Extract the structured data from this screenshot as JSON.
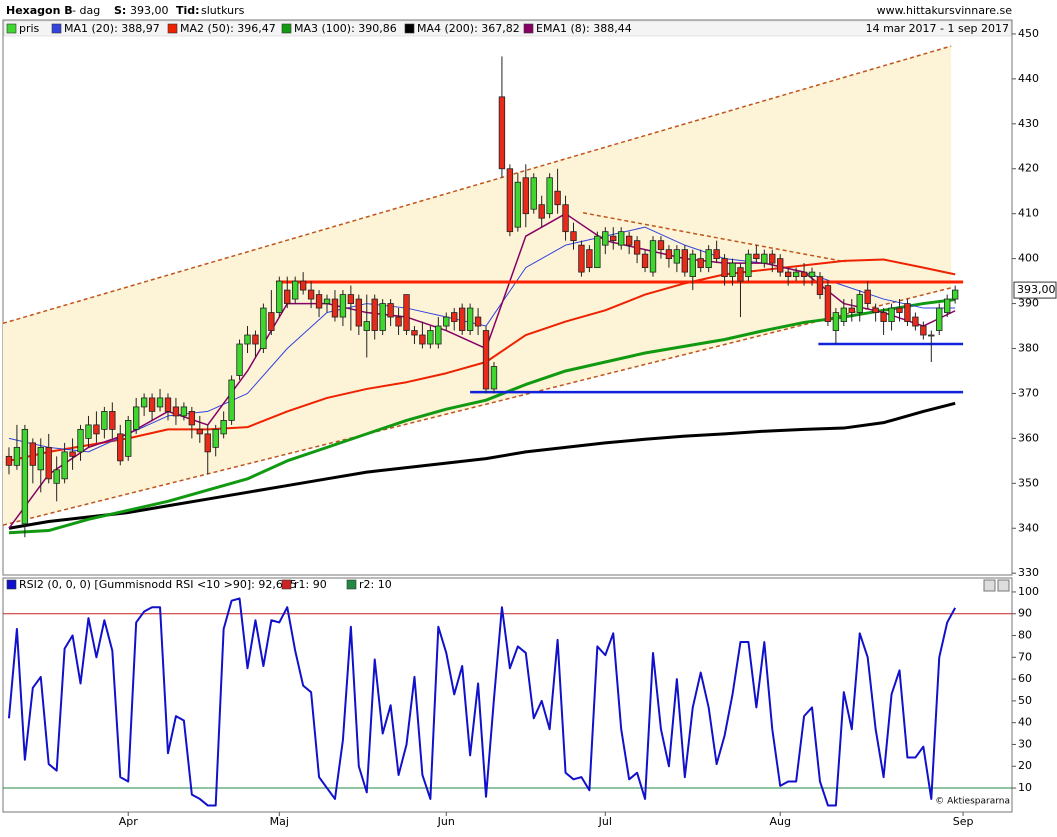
{
  "chart_data": [
    {
      "type": "candlestick",
      "title": "Hexagon B",
      "subtitle": "- dag",
      "s_label": "S:",
      "s_value": "393,00",
      "tid_label": "Tid:",
      "tid_value": "slutkurs",
      "source": "www.hittakursvinnare.se",
      "date_range": "14 mar 2017 - 1 sep 2017",
      "last_label": "393,00",
      "candle_name": "pris",
      "up_color": "#3fd630",
      "down_color": "#e82a1a",
      "xlim": [
        -0.75,
        126.15
      ],
      "ylim": [
        329.6,
        453.1
      ],
      "yticks": [
        330,
        340,
        350,
        360,
        370,
        380,
        390,
        400,
        410,
        420,
        430,
        440,
        450
      ],
      "open": [
        356,
        354,
        341,
        359,
        353,
        358,
        350,
        351,
        357,
        357,
        360,
        363,
        362,
        366,
        361,
        356,
        362,
        367,
        369,
        367,
        369,
        367,
        365,
        366,
        362,
        361,
        358,
        361,
        364,
        374,
        381,
        383,
        380,
        388,
        388,
        393,
        391,
        395,
        393,
        392,
        390,
        391,
        387,
        392,
        391,
        384,
        391,
        384,
        390,
        387,
        392,
        384,
        383,
        381,
        381,
        385,
        388,
        389,
        384,
        387,
        384,
        371,
        436,
        420,
        407,
        418,
        411,
        412,
        410,
        415,
        412,
        406,
        403,
        402,
        398,
        403,
        405,
        403,
        405,
        404,
        401,
        397,
        404,
        402,
        399,
        402,
        396,
        400,
        398,
        402,
        400,
        396,
        398,
        396,
        401,
        399,
        401,
        400,
        397,
        396,
        397,
        396,
        396,
        394,
        384,
        386,
        389,
        388,
        393,
        389,
        388,
        386,
        389,
        390,
        387,
        385,
        383,
        384,
        388,
        391
      ],
      "high": [
        358,
        363,
        363,
        360,
        360,
        361,
        356,
        359,
        360,
        363,
        365,
        366,
        367,
        368,
        363,
        365,
        369,
        370,
        370,
        371,
        370,
        369,
        368,
        367,
        365,
        363,
        363,
        366,
        374,
        382,
        385,
        384,
        390,
        393,
        396,
        396,
        396,
        397,
        395,
        393,
        392,
        393,
        393,
        394,
        392,
        392,
        392,
        391,
        391,
        389,
        392,
        385,
        386,
        385,
        387,
        388,
        389,
        390,
        390,
        389,
        385,
        377,
        445,
        421,
        419,
        421,
        419,
        414,
        419,
        420,
        414,
        408,
        404,
        403,
        406,
        407,
        407,
        407,
        406,
        405,
        402,
        405,
        405,
        403,
        403,
        403,
        402,
        402,
        403,
        404,
        401,
        400,
        399,
        402,
        403,
        402,
        402,
        401,
        398,
        398,
        399,
        398,
        397,
        395,
        389,
        391,
        391,
        393,
        395,
        390,
        389,
        390,
        391,
        391,
        388,
        386,
        384,
        390,
        392,
        394
      ],
      "low": [
        352,
        353,
        338,
        350,
        348,
        350,
        346,
        350,
        353,
        355,
        358,
        359,
        360,
        360,
        354,
        355,
        361,
        365,
        364,
        366,
        364,
        363,
        364,
        360,
        359,
        352,
        356,
        360,
        363,
        373,
        379,
        378,
        379,
        383,
        387,
        389,
        390,
        392,
        389,
        387,
        388,
        386,
        385,
        384,
        383,
        378,
        382,
        383,
        385,
        383,
        383,
        381,
        380,
        380,
        380,
        384,
        384,
        383,
        383,
        383,
        370,
        370,
        418,
        405,
        406,
        407,
        410,
        407,
        409,
        410,
        404,
        402,
        396,
        397,
        398,
        401,
        402,
        402,
        401,
        399,
        397,
        396,
        400,
        398,
        397,
        396,
        393,
        397,
        397,
        399,
        394,
        394,
        387,
        395,
        399,
        398,
        397,
        396,
        394,
        395,
        394,
        394,
        391,
        385,
        381,
        385,
        386,
        386,
        389,
        386,
        383,
        384,
        386,
        385,
        384,
        382,
        377,
        383,
        387,
        390
      ],
      "close": [
        354,
        358,
        362,
        354,
        358,
        351,
        353,
        357,
        356,
        362,
        363,
        361,
        366,
        362,
        355,
        364,
        367,
        369,
        366,
        369,
        366,
        365,
        367,
        363,
        361,
        357,
        362,
        364,
        373,
        381,
        383,
        381,
        389,
        384,
        395,
        390,
        395,
        393,
        391,
        389,
        391,
        387,
        392,
        390,
        385,
        386,
        384,
        390,
        387,
        385,
        384,
        383,
        381,
        384,
        385,
        387,
        386,
        384,
        389,
        385,
        371,
        376,
        420,
        406,
        417,
        410,
        418,
        409,
        418,
        412,
        406,
        404,
        397,
        398,
        405,
        406,
        404,
        406,
        403,
        401,
        398,
        404,
        402,
        400,
        402,
        397,
        401,
        398,
        402,
        400,
        396,
        399,
        395,
        401,
        400,
        401,
        399,
        397,
        396,
        397,
        396,
        397,
        392,
        386,
        388,
        389,
        388,
        392,
        390,
        388,
        386,
        389,
        388,
        386,
        385,
        383,
        383,
        389,
        391,
        393
      ],
      "series": [
        {
          "name": "MA1 (20): 388,97",
          "color": "#3344dd",
          "width": 1,
          "x": [
            0,
            5,
            10,
            15,
            20,
            25,
            30,
            35,
            40,
            45,
            50,
            55,
            60,
            65,
            70,
            75,
            80,
            85,
            90,
            95,
            100,
            105,
            110,
            115,
            119
          ],
          "values": [
            360,
            358,
            357,
            361,
            365,
            366,
            370,
            380,
            388,
            390,
            389,
            387,
            385,
            398,
            403,
            405,
            407,
            403,
            400,
            399,
            397,
            394,
            391,
            389,
            389
          ]
        },
        {
          "name": "MA2 (50): 396,47",
          "color": "#ee2200",
          "width": 2,
          "x": [
            0,
            5,
            10,
            15,
            20,
            25,
            30,
            35,
            40,
            45,
            50,
            55,
            60,
            65,
            70,
            75,
            80,
            85,
            90,
            95,
            100,
            105,
            110,
            115,
            119
          ],
          "values": [
            355,
            357,
            358.5,
            360,
            362,
            362,
            362.5,
            366,
            369,
            371,
            372.5,
            374.5,
            377,
            383,
            386,
            388.5,
            392,
            394.5,
            396.5,
            397.5,
            398.5,
            399.5,
            399.8,
            398,
            396.5
          ]
        },
        {
          "name": "MA3 (100): 390,86",
          "color": "#119911",
          "width": 3,
          "x": [
            0,
            5,
            10,
            15,
            20,
            25,
            30,
            35,
            40,
            45,
            50,
            55,
            60,
            65,
            70,
            75,
            80,
            85,
            90,
            95,
            100,
            105,
            110,
            115,
            119
          ],
          "values": [
            339,
            339.5,
            342,
            344,
            346,
            348.5,
            351,
            355,
            358,
            361,
            364,
            366.5,
            368.5,
            372,
            375,
            377,
            379,
            380.5,
            382,
            384,
            385.8,
            387,
            388.5,
            390,
            390.9
          ]
        },
        {
          "name": "MA4 (200): 367,82",
          "color": "#000000",
          "width": 3,
          "x": [
            0,
            5,
            10,
            15,
            20,
            25,
            30,
            35,
            40,
            45,
            50,
            55,
            60,
            65,
            70,
            75,
            80,
            85,
            90,
            95,
            100,
            105,
            110,
            115,
            119
          ],
          "values": [
            340,
            341.5,
            342.5,
            343.5,
            345,
            346.5,
            348,
            349.5,
            351,
            352.5,
            353.5,
            354.5,
            355.5,
            357,
            358,
            359,
            359.8,
            360.5,
            361,
            361.6,
            362,
            362.3,
            363.5,
            366,
            367.8
          ]
        },
        {
          "name": "EMA1 (8): 388,44",
          "color": "#880066",
          "width": 1.5,
          "x": [
            0,
            5,
            10,
            15,
            20,
            25,
            30,
            35,
            40,
            45,
            50,
            55,
            60,
            65,
            70,
            75,
            80,
            85,
            90,
            95,
            100,
            105,
            110,
            115,
            119
          ],
          "values": [
            340,
            352,
            358,
            361,
            366,
            363,
            375,
            390,
            390,
            388,
            387,
            384,
            380,
            405,
            410,
            404,
            402,
            400,
            399,
            399,
            397,
            390,
            388,
            385,
            388.4
          ]
        }
      ],
      "channel": {
        "color": "#c0551c",
        "fill": "#fdf3d6",
        "x": [
          -0.75,
          118.5
        ],
        "upper": [
          385.6,
          447.3
        ],
        "lower": [
          340.7,
          393.5
        ]
      },
      "trend_line": {
        "color": "#c0551c",
        "x": [
          72.2,
          105.2
        ],
        "values": [
          410.2,
          399.3
        ]
      },
      "levels": [
        {
          "value": 394.8,
          "x": [
            33.6,
            120
          ],
          "color": "#ff2200",
          "width": 3
        },
        {
          "value": 381,
          "x": [
            101.8,
            120
          ],
          "color": "#1122dd",
          "width": 2.5
        },
        {
          "value": 370.3,
          "x": [
            58,
            120
          ],
          "color": "#1122dd",
          "width": 2.5
        }
      ]
    },
    {
      "type": "line",
      "xlim": [
        -0.75,
        126.15
      ],
      "ylim": [
        -1,
        106.4
      ],
      "yticks": [
        10,
        20,
        30,
        40,
        50,
        60,
        70,
        80,
        90,
        100
      ],
      "xticks": [
        {
          "value": 15,
          "label": "Apr"
        },
        {
          "value": 34,
          "label": "Maj"
        },
        {
          "value": 55,
          "label": "Jun"
        },
        {
          "value": 75,
          "label": "Jul"
        },
        {
          "value": 97,
          "label": "Aug"
        },
        {
          "value": 120,
          "label": "Sep"
        }
      ],
      "watermark": "© Aktiespararna",
      "series": [
        {
          "name": "RSI2 (0, 0, 0) [Gummisnodd RSI <10 >90]: 92,695",
          "color": "#1111cc",
          "values": [
            42,
            83,
            23,
            56,
            61,
            21,
            18,
            74,
            80,
            58,
            88,
            70,
            87,
            73,
            15,
            13,
            86,
            91,
            93,
            93,
            26,
            43,
            41,
            7,
            5,
            2,
            2,
            83,
            96,
            97,
            65,
            87,
            66,
            87,
            86,
            93,
            73,
            57,
            54,
            15,
            10,
            5,
            32,
            84,
            20,
            8,
            69,
            35,
            48,
            16,
            30,
            61,
            16,
            5,
            84,
            72,
            53,
            66,
            25,
            58,
            6,
            51,
            93,
            65,
            75,
            72,
            42,
            50,
            37,
            78,
            17,
            14,
            15,
            9,
            75,
            71,
            81,
            37,
            14,
            17,
            5,
            72,
            37,
            20,
            60,
            15,
            47,
            63,
            47,
            21,
            34,
            53,
            77,
            77,
            47,
            77,
            37,
            11,
            13,
            13,
            43,
            47,
            13,
            2,
            2,
            54,
            37,
            81,
            70,
            37,
            15,
            53,
            64,
            24,
            24,
            29,
            5,
            70,
            86,
            92.695
          ]
        }
      ],
      "levels": [
        {
          "name": "r1: 90",
          "value": 90,
          "color": "#cc2222"
        },
        {
          "name": "r2: 10",
          "value": 10,
          "color": "#228844"
        }
      ]
    }
  ]
}
